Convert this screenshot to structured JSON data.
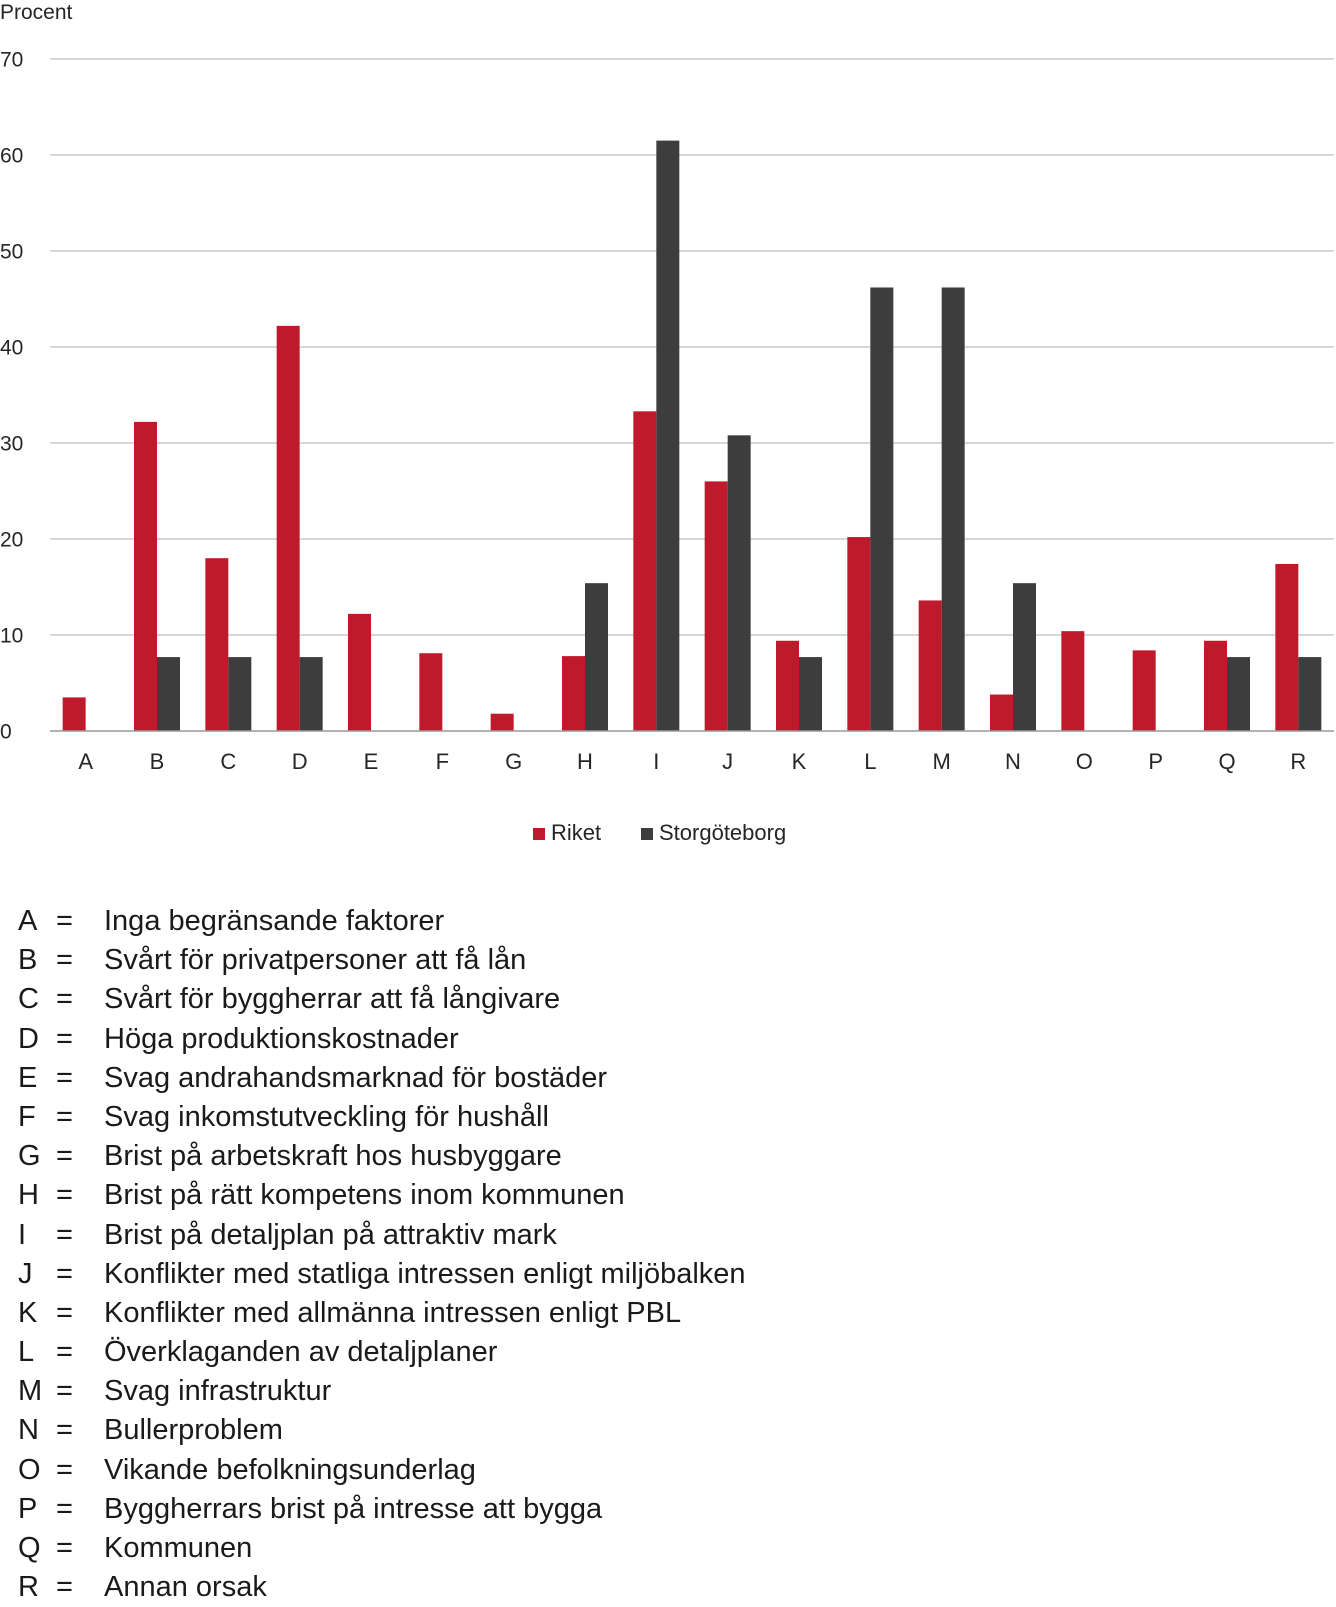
{
  "chart_data": {
    "type": "bar",
    "ylabel": "Procent",
    "ylim": [
      0,
      70
    ],
    "yticks": [
      0,
      10,
      20,
      30,
      40,
      50,
      60,
      70
    ],
    "grid": true,
    "legend_position": "bottom-center",
    "categories": [
      "A",
      "B",
      "C",
      "D",
      "E",
      "F",
      "G",
      "H",
      "I",
      "J",
      "K",
      "L",
      "M",
      "N",
      "O",
      "P",
      "Q",
      "R"
    ],
    "series": [
      {
        "name": "Riket",
        "color": "#be1a2c",
        "values": [
          3.5,
          32.2,
          18,
          42.2,
          12.2,
          8.1,
          1.8,
          7.8,
          33.3,
          26,
          9.4,
          20.2,
          13.6,
          3.8,
          10.4,
          8.4,
          9.4,
          17.4
        ]
      },
      {
        "name": "Storgöteborg",
        "color": "#3d3d3d",
        "values": [
          0,
          7.7,
          7.7,
          7.7,
          0,
          0,
          0,
          15.4,
          61.5,
          30.8,
          7.7,
          46.2,
          46.2,
          15.4,
          0,
          0,
          7.7,
          7.7
        ]
      }
    ]
  },
  "glossary": [
    {
      "letter": "A",
      "eq": "=",
      "text": "Inga begränsande faktorer"
    },
    {
      "letter": "B",
      "eq": "=",
      "text": "Svårt för privatpersoner att få lån"
    },
    {
      "letter": "C",
      "eq": "=",
      "text": "Svårt för byggherrar att få långivare"
    },
    {
      "letter": "D",
      "eq": "=",
      "text": "Höga produktionskostnader"
    },
    {
      "letter": "E",
      "eq": "=",
      "text": "Svag andrahandsmarknad för bostäder"
    },
    {
      "letter": "F",
      "eq": "=",
      "text": "Svag inkomstutveckling för hushåll"
    },
    {
      "letter": "G",
      "eq": "=",
      "text": "Brist på arbetskraft hos husbyggare"
    },
    {
      "letter": "H",
      "eq": "=",
      "text": "Brist på rätt kompetens inom kommunen"
    },
    {
      "letter": "I",
      "eq": "=",
      "text": "Brist på detaljplan på attraktiv mark"
    },
    {
      "letter": "J",
      "eq": "=",
      "text": "Konflikter med statliga intressen enligt miljöbalken"
    },
    {
      "letter": "K",
      "eq": "=",
      "text": "Konflikter med allmänna intressen enligt PBL"
    },
    {
      "letter": "L",
      "eq": "=",
      "text": "Överklaganden av detaljplaner"
    },
    {
      "letter": "M",
      "eq": "=",
      "text": "Svag infrastruktur"
    },
    {
      "letter": "N",
      "eq": "=",
      "text": "Bullerproblem"
    },
    {
      "letter": "O",
      "eq": "=",
      "text": "Vikande befolkningsunderlag"
    },
    {
      "letter": "P",
      "eq": "=",
      "text": "Byggherrars brist på intresse att bygga"
    },
    {
      "letter": "Q",
      "eq": "=",
      "text": "Kommunen"
    },
    {
      "letter": "R",
      "eq": "=",
      "text": "Annan orsak"
    }
  ]
}
